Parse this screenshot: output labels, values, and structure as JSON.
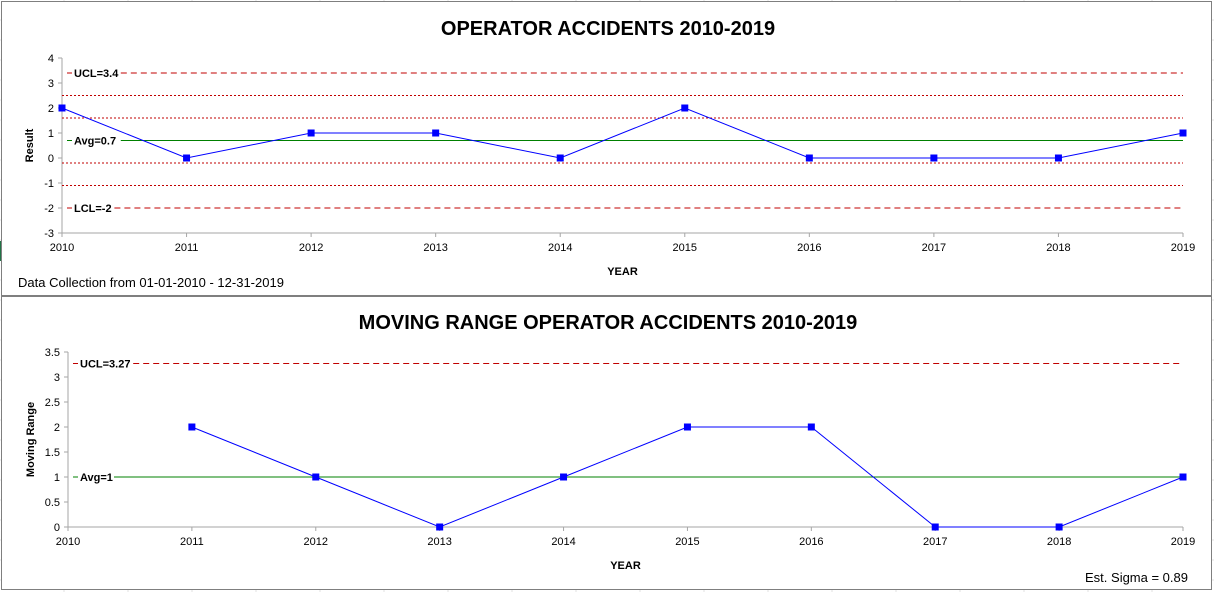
{
  "colors": {
    "series": "#0000ff",
    "avg_line": "#008000",
    "limit_line": "#c00000",
    "axis": "#a6a6a6",
    "panel_border": "#7f7f7f"
  },
  "chart_data": [
    {
      "type": "line",
      "title": "OPERATOR ACCIDENTS 2010-2019",
      "xlabel": "YEAR",
      "ylabel": "Result",
      "x": [
        "2010",
        "2011",
        "2012",
        "2013",
        "2014",
        "2015",
        "2016",
        "2017",
        "2018",
        "2019"
      ],
      "series": [
        {
          "values": [
            2,
            0,
            1,
            1,
            0,
            2,
            0,
            0,
            0,
            1
          ]
        }
      ],
      "ylim": [
        -3,
        4
      ],
      "yticks": [
        "-3",
        "-2",
        "-1",
        "0",
        "1",
        "2",
        "3",
        "4"
      ],
      "ucl": {
        "value": 3.4,
        "label": "UCL=3.4"
      },
      "avg": {
        "value": 0.7,
        "label": "Avg=0.7"
      },
      "lcl": {
        "value": -2,
        "label": "LCL=-2"
      },
      "zone_lines": [
        2.5,
        1.6,
        -0.2,
        -1.1
      ],
      "grid": false,
      "legend": "none",
      "note": "Data Collection from 01-01-2010 - 12-31-2019"
    },
    {
      "type": "line",
      "title": "MOVING RANGE OPERATOR ACCIDENTS 2010-2019",
      "xlabel": "YEAR",
      "ylabel": "Moving Range",
      "x": [
        "2010",
        "2011",
        "2012",
        "2013",
        "2014",
        "2015",
        "2016",
        "2017",
        "2018",
        "2019"
      ],
      "series": [
        {
          "values": [
            null,
            2,
            1,
            0,
            1,
            2,
            2,
            0,
            0,
            1
          ]
        }
      ],
      "ylim": [
        0,
        3.5
      ],
      "yticks": [
        "0",
        "0.5",
        "1",
        "1.5",
        "2",
        "2.5",
        "3",
        "3.5"
      ],
      "ucl": {
        "value": 3.27,
        "label": "UCL=3.27"
      },
      "avg": {
        "value": 1,
        "label": "Avg=1"
      },
      "grid": false,
      "legend": "none",
      "note": "Est. Sigma = 0.89"
    }
  ]
}
